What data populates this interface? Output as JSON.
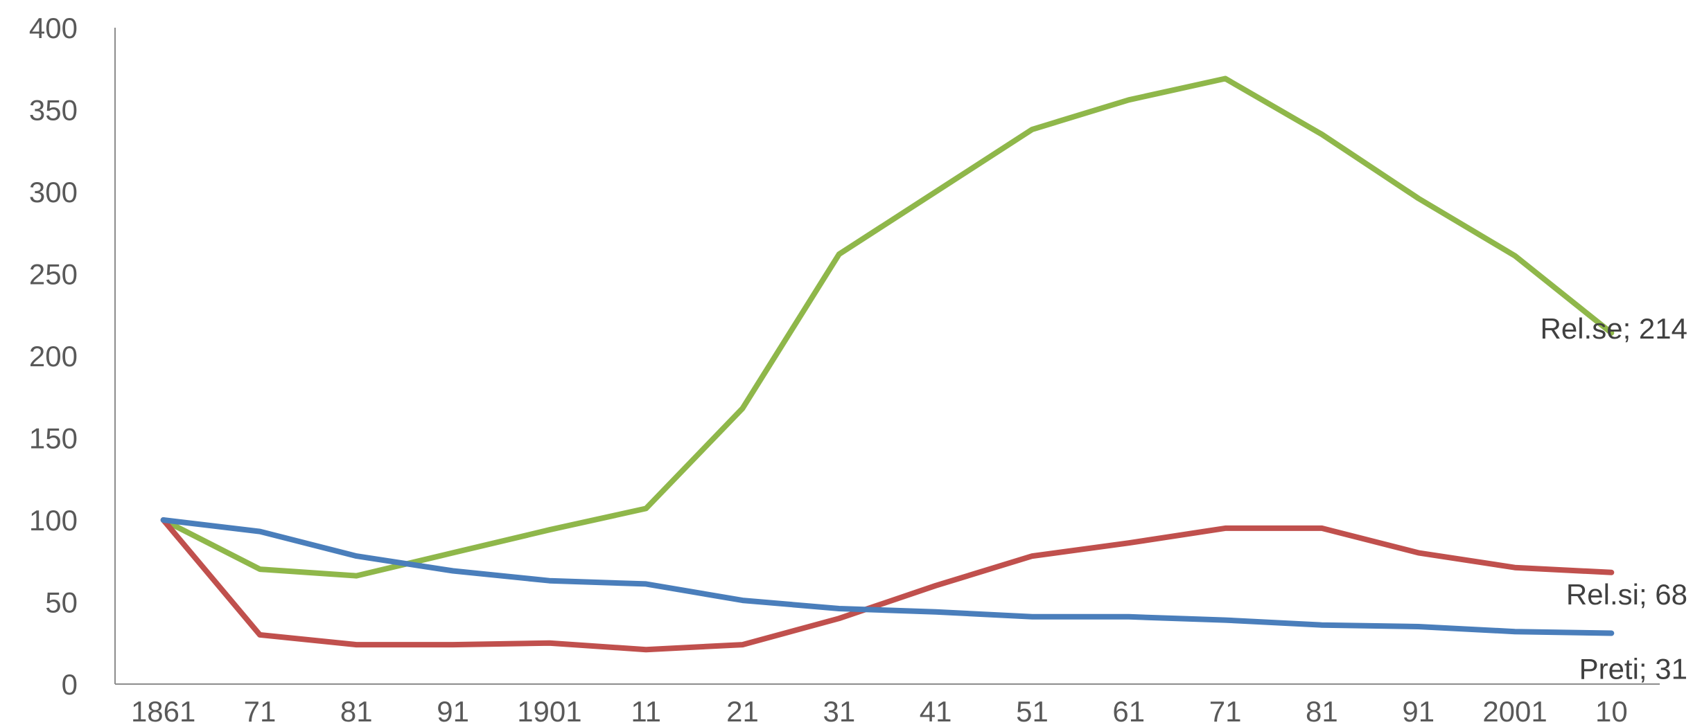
{
  "chart_data": {
    "type": "line",
    "title": "",
    "xlabel": "",
    "ylabel": "",
    "ylim": [
      0,
      400
    ],
    "yticks": [
      0,
      50,
      100,
      150,
      200,
      250,
      300,
      350,
      400
    ],
    "grid": false,
    "legend": "none",
    "categories": [
      "1861",
      "71",
      "81",
      "91",
      "1901",
      "11",
      "21",
      "31",
      "41",
      "51",
      "61",
      "71",
      "81",
      "91",
      "2001",
      "10"
    ],
    "series": [
      {
        "name": "Rel.se",
        "color": "#8fb74a",
        "values": [
          100,
          70,
          66,
          80,
          94,
          107,
          168,
          262,
          300,
          338,
          356,
          369,
          335,
          296,
          261,
          214
        ],
        "end_label": "Rel.se; 214"
      },
      {
        "name": "Rel.si",
        "color": "#c0504d",
        "values": [
          100,
          30,
          24,
          24,
          25,
          21,
          24,
          40,
          60,
          78,
          86,
          95,
          95,
          80,
          71,
          68
        ],
        "end_label": "Rel.si; 68"
      },
      {
        "name": "Preti",
        "color": "#4a7ebb",
        "values": [
          100,
          93,
          78,
          69,
          63,
          61,
          51,
          46,
          44,
          41,
          41,
          39,
          36,
          35,
          32,
          31
        ],
        "end_label": "Preti; 31"
      }
    ]
  }
}
